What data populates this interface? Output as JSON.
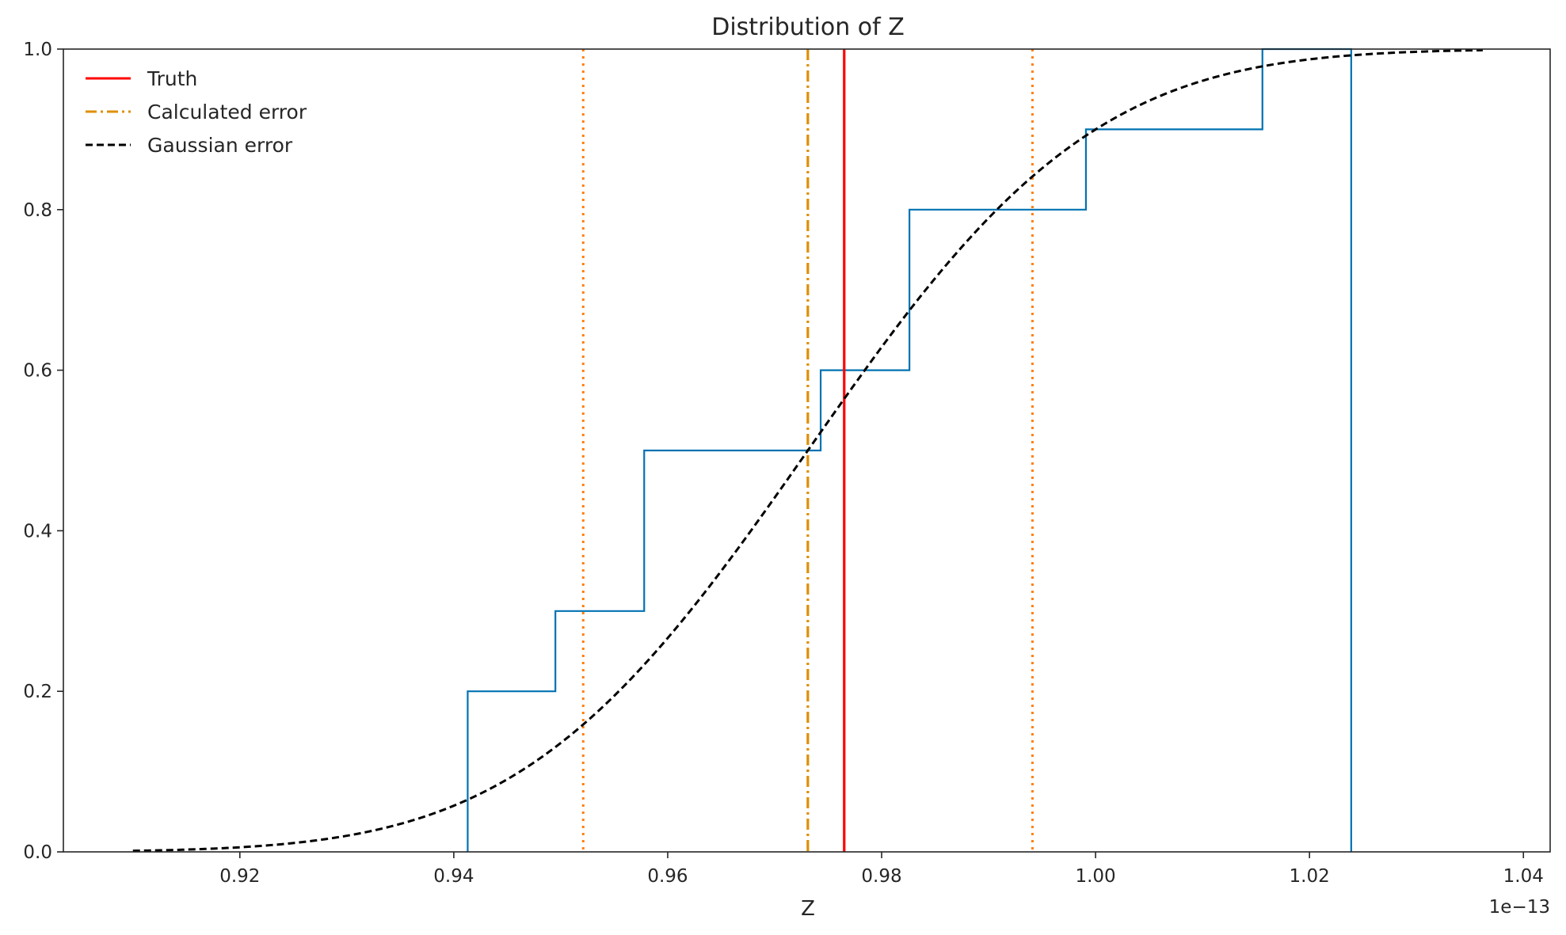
{
  "chart_data": {
    "type": "line",
    "title": "Distribution of Z",
    "xlabel": "Z",
    "ylabel": "",
    "x_offset_text": "1e−13",
    "xlim": [
      0.9035,
      1.0425
    ],
    "ylim": [
      0.0,
      1.0
    ],
    "x_ticks": [
      0.92,
      0.94,
      0.96,
      0.98,
      1.0,
      1.02,
      1.04
    ],
    "x_tick_labels": [
      "0.92",
      "0.94",
      "0.96",
      "0.98",
      "1.00",
      "1.02",
      "1.04"
    ],
    "y_ticks": [
      0.0,
      0.2,
      0.4,
      0.6,
      0.8,
      1.0
    ],
    "y_tick_labels": [
      "0.0",
      "0.2",
      "0.4",
      "0.6",
      "0.8",
      "1.0"
    ],
    "grid": false,
    "legend_position": "top-left",
    "ecdf": {
      "color": "#0072b2",
      "x": [
        0.9413,
        0.9495,
        0.9578,
        0.9743,
        0.9826,
        0.9991,
        1.0156,
        1.0239
      ],
      "y": [
        0.2,
        0.3,
        0.5,
        0.6,
        0.8,
        0.9,
        1.0,
        1.0
      ],
      "drops_to_zero_at_end": true
    },
    "truth": {
      "name": "Truth",
      "x": 0.9765,
      "color": "#ff0000",
      "style": "solid"
    },
    "calculated_error": {
      "name": "Calculated error",
      "x": 0.9731,
      "bounds": [
        0.9521,
        0.9941
      ],
      "color": "#de8f05",
      "bound_color": "#ff7f0e",
      "style": "dashdot"
    },
    "gaussian_error": {
      "name": "Gaussian error",
      "color": "#000000",
      "style": "dashed",
      "mean": 0.9731,
      "sd": 0.021,
      "x_range": [
        0.91,
        1.0362
      ]
    }
  }
}
